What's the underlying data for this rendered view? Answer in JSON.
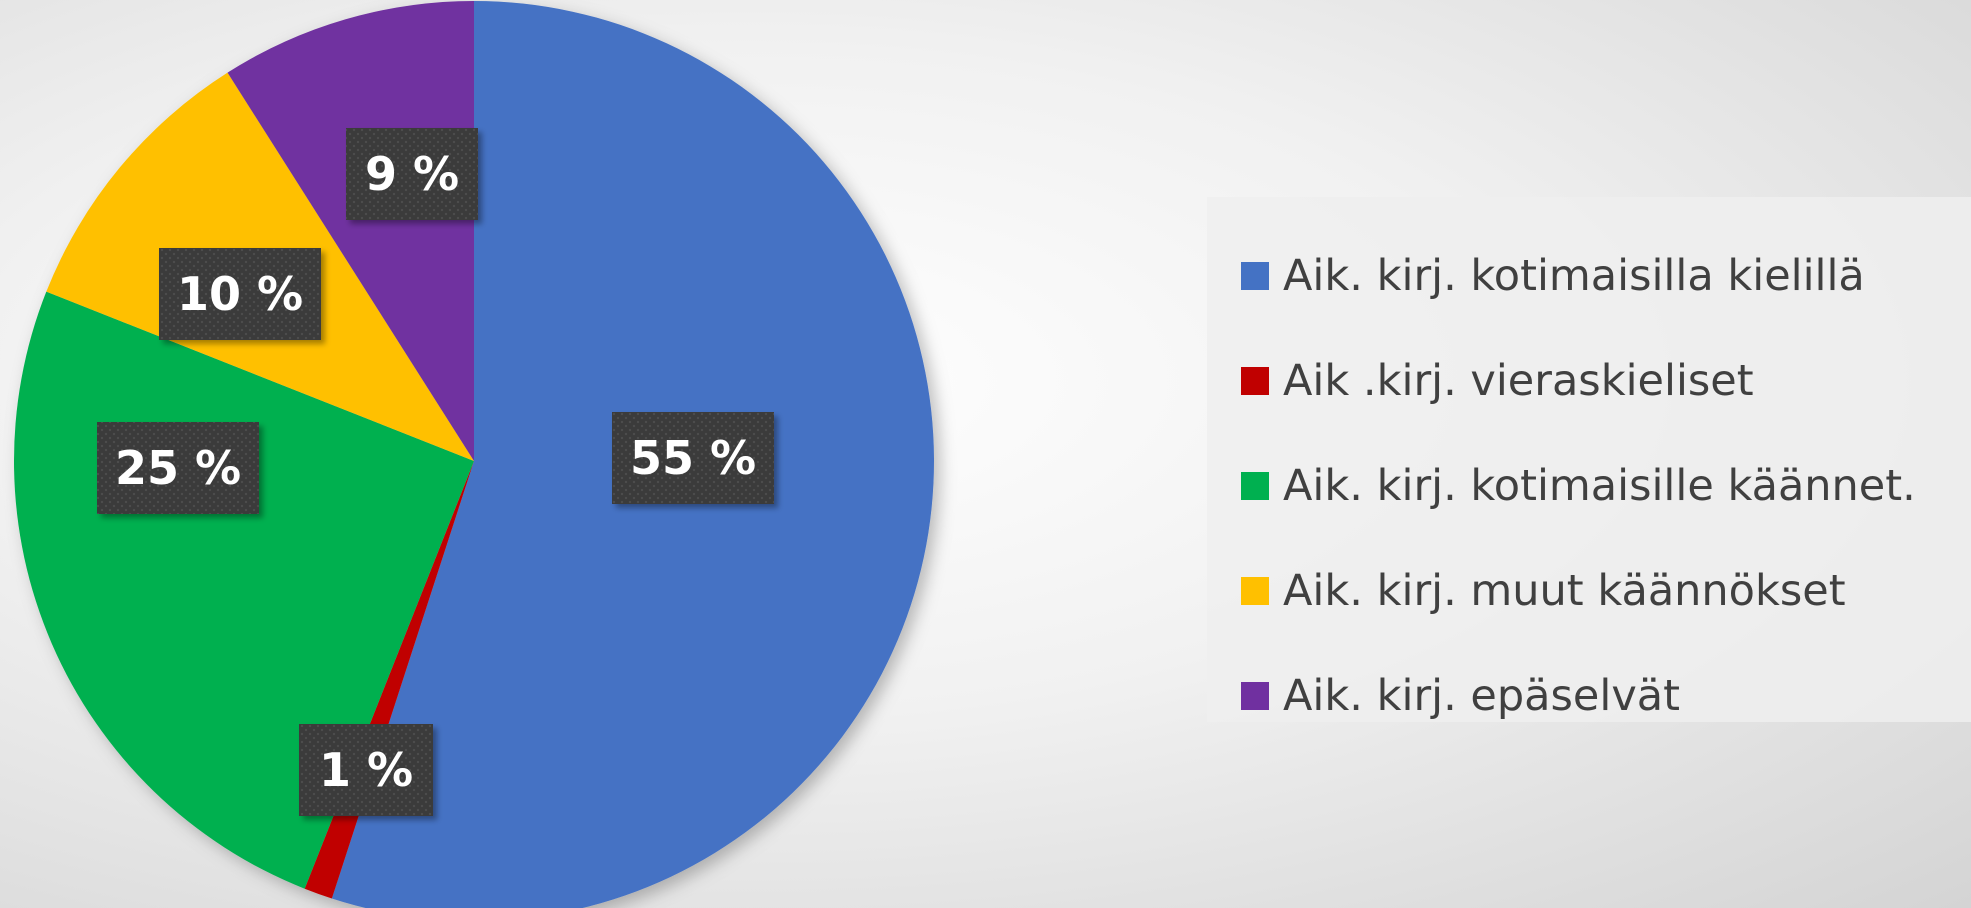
{
  "chart_data": {
    "type": "pie",
    "title": "",
    "legend_position": "right",
    "start_angle_deg": 0,
    "direction": "clockwise",
    "slices": [
      {
        "label": "Aik. kirj. kotimaisilla kielillä",
        "value": 55,
        "display": "55 %",
        "color": "#4472c4"
      },
      {
        "label": "Aik .kirj. vieraskieliset",
        "value": 1,
        "display": "1 %",
        "color": "#c00000"
      },
      {
        "label": "Aik. kirj. kotimaisille käännet.",
        "value": 25,
        "display": "25 %",
        "color": "#00b050"
      },
      {
        "label": "Aik. kirj. muut käännökset",
        "value": 10,
        "display": "10 %",
        "color": "#ffc000"
      },
      {
        "label": "Aik. kirj. epäselvät",
        "value": 9,
        "display": "9 %",
        "color": "#7030a0"
      }
    ]
  }
}
